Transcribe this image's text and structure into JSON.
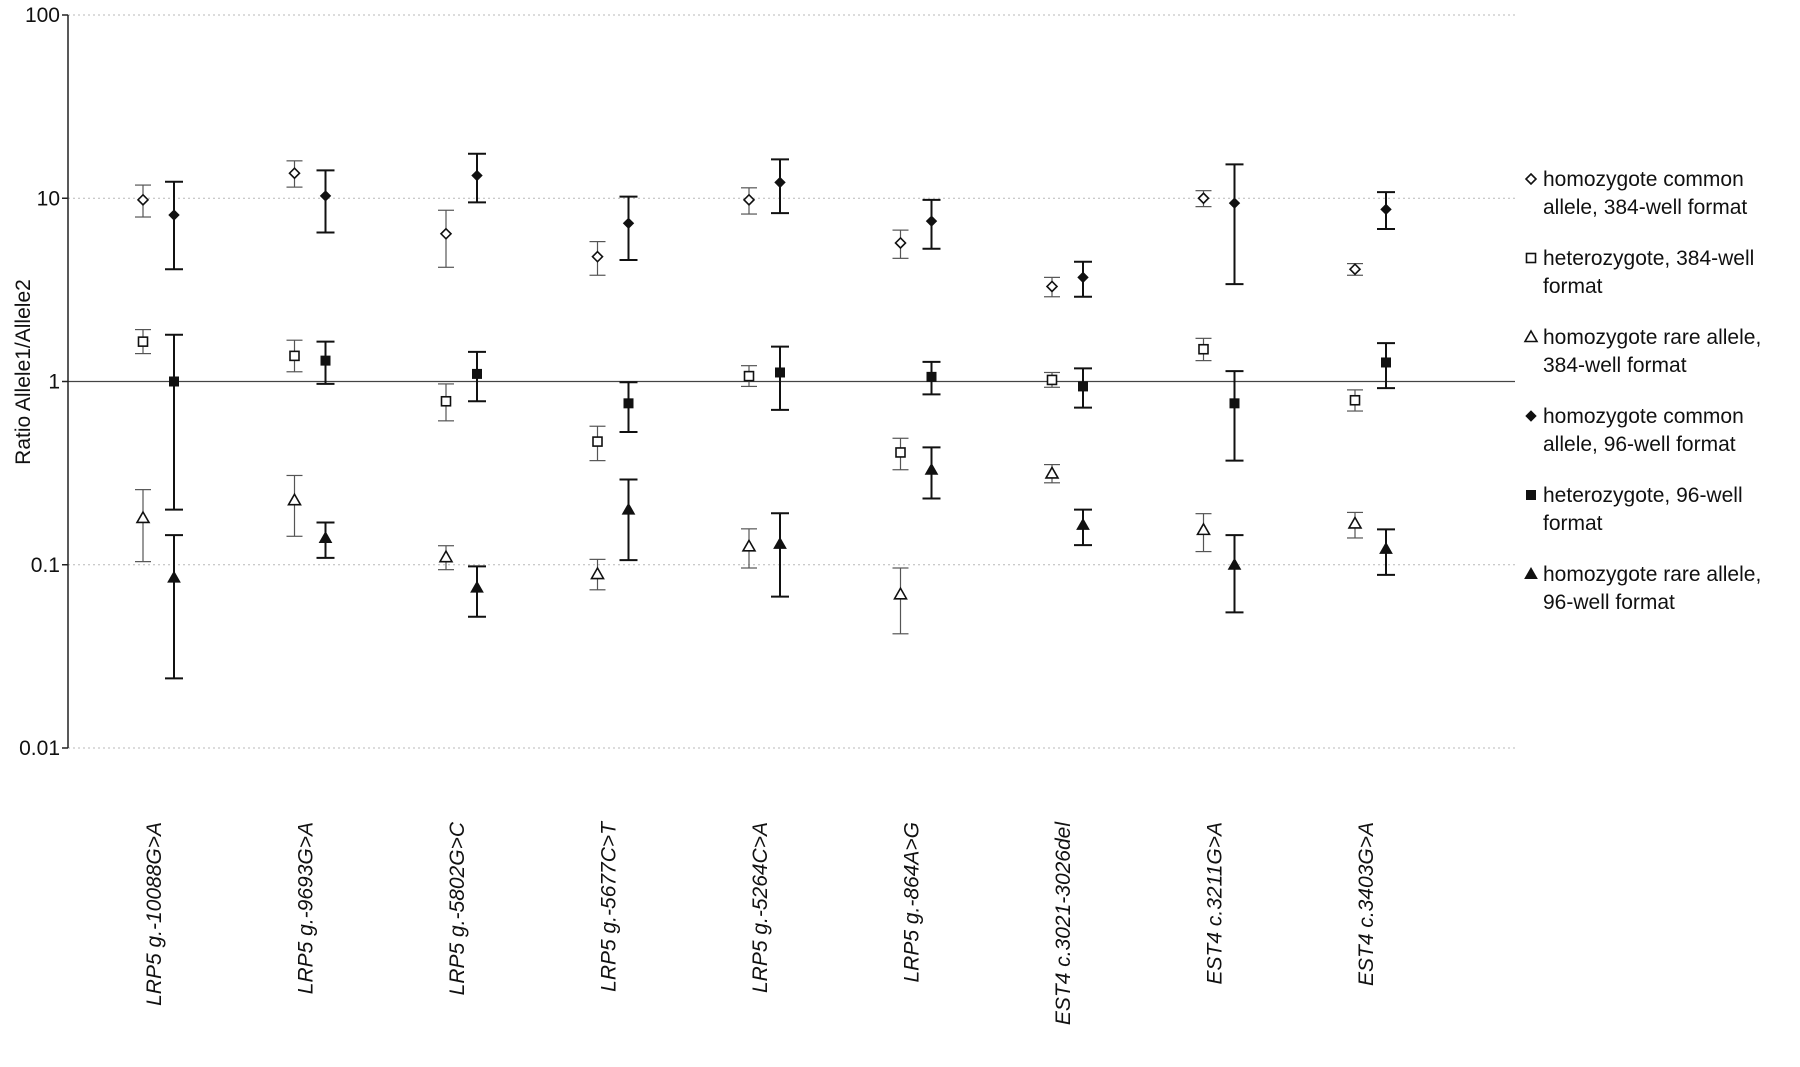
{
  "chart_data": {
    "type": "scatter",
    "title": "",
    "xlabel": "",
    "ylabel": "Ratio Allele1/Allele2",
    "yscale": "log",
    "ylim": [
      0.01,
      100
    ],
    "yticks": [
      "0.01",
      "0.1",
      "1",
      "10",
      "100"
    ],
    "grid": true,
    "reference_line": 1,
    "legend_position": "right",
    "categories": [
      "LRP5 g.-10088G>A",
      "LRP5 g.-9693G>A",
      "LRP5 g.-5802G>C",
      "LRP5 g.-5677C>T",
      "LRP5 g.-5264C>A",
      "LRP5 g.-864A>G",
      "EST4 c.3021-3026del",
      "EST4 c.3211G>A",
      "EST4 c.3403G>A"
    ],
    "series": [
      {
        "name": "homozygote common allele, 384-well format",
        "marker": "diamond-open",
        "format": "384",
        "values": [
          9.8,
          13.7,
          6.4,
          4.8,
          9.8,
          5.7,
          3.3,
          10.0,
          4.1
        ],
        "lower": [
          7.9,
          11.5,
          4.2,
          3.8,
          8.2,
          4.7,
          2.9,
          9.0,
          3.8
        ],
        "upper": [
          11.8,
          16.0,
          8.6,
          5.8,
          11.4,
          6.7,
          3.7,
          11.0,
          4.4
        ]
      },
      {
        "name": "heterozygote, 384-well format",
        "marker": "square-open",
        "format": "384",
        "values": [
          1.65,
          1.38,
          0.78,
          0.47,
          1.07,
          0.41,
          1.02,
          1.5,
          0.79
        ],
        "lower": [
          1.42,
          1.13,
          0.61,
          0.37,
          0.94,
          0.33,
          0.93,
          1.3,
          0.69
        ],
        "upper": [
          1.92,
          1.68,
          0.97,
          0.57,
          1.22,
          0.49,
          1.12,
          1.72,
          0.9
        ]
      },
      {
        "name": "homozygote rare allele, 384-well format",
        "marker": "triangle-open",
        "format": "384",
        "values": [
          0.18,
          0.225,
          0.11,
          0.089,
          0.126,
          0.069,
          0.315,
          0.155,
          0.168
        ],
        "lower": [
          0.104,
          0.143,
          0.094,
          0.073,
          0.096,
          0.042,
          0.28,
          0.118,
          0.14
        ],
        "upper": [
          0.257,
          0.307,
          0.127,
          0.107,
          0.157,
          0.096,
          0.352,
          0.19,
          0.193
        ]
      },
      {
        "name": "homozygote common allele, 96-well format",
        "marker": "diamond-filled",
        "format": "96",
        "values": [
          8.1,
          10.3,
          13.3,
          7.3,
          12.2,
          7.5,
          3.7,
          9.4,
          8.7
        ],
        "lower": [
          4.1,
          6.5,
          9.5,
          4.6,
          8.3,
          5.3,
          2.9,
          3.4,
          6.8
        ],
        "upper": [
          12.3,
          14.2,
          17.5,
          10.2,
          16.3,
          9.8,
          4.5,
          15.3,
          10.8
        ]
      },
      {
        "name": "heterozygote, 96-well format",
        "marker": "square-filled",
        "format": "96",
        "values": [
          1.0,
          1.3,
          1.1,
          0.76,
          1.12,
          1.06,
          0.94,
          0.76,
          1.27
        ],
        "lower": [
          0.2,
          0.97,
          0.78,
          0.53,
          0.7,
          0.85,
          0.72,
          0.37,
          0.92
        ],
        "upper": [
          1.8,
          1.65,
          1.45,
          0.99,
          1.55,
          1.28,
          1.18,
          1.14,
          1.62
        ]
      },
      {
        "name": "homozygote rare allele, 96-well format",
        "marker": "triangle-filled",
        "format": "96",
        "values": [
          0.085,
          0.14,
          0.075,
          0.2,
          0.13,
          0.33,
          0.165,
          0.1,
          0.122
        ],
        "lower": [
          0.024,
          0.109,
          0.052,
          0.106,
          0.067,
          0.23,
          0.128,
          0.055,
          0.088
        ],
        "upper": [
          0.145,
          0.17,
          0.098,
          0.292,
          0.191,
          0.437,
          0.2,
          0.145,
          0.156
        ]
      }
    ],
    "legend": [
      {
        "lines": [
          "homozygote common",
          "allele, 384-well format"
        ],
        "marker": "diamond-open"
      },
      {
        "lines": [
          "heterozygote, 384-well",
          "format"
        ],
        "marker": "square-open"
      },
      {
        "lines": [
          "homozygote rare allele,",
          "384-well format"
        ],
        "marker": "triangle-open"
      },
      {
        "lines": [
          "homozygote common",
          "allele, 96-well format"
        ],
        "marker": "diamond-filled"
      },
      {
        "lines": [
          "heterozygote, 96-well",
          "format"
        ],
        "marker": "square-filled"
      },
      {
        "lines": [
          "homozygote rare allele,",
          "96-well format"
        ],
        "marker": "triangle-filled"
      }
    ]
  }
}
